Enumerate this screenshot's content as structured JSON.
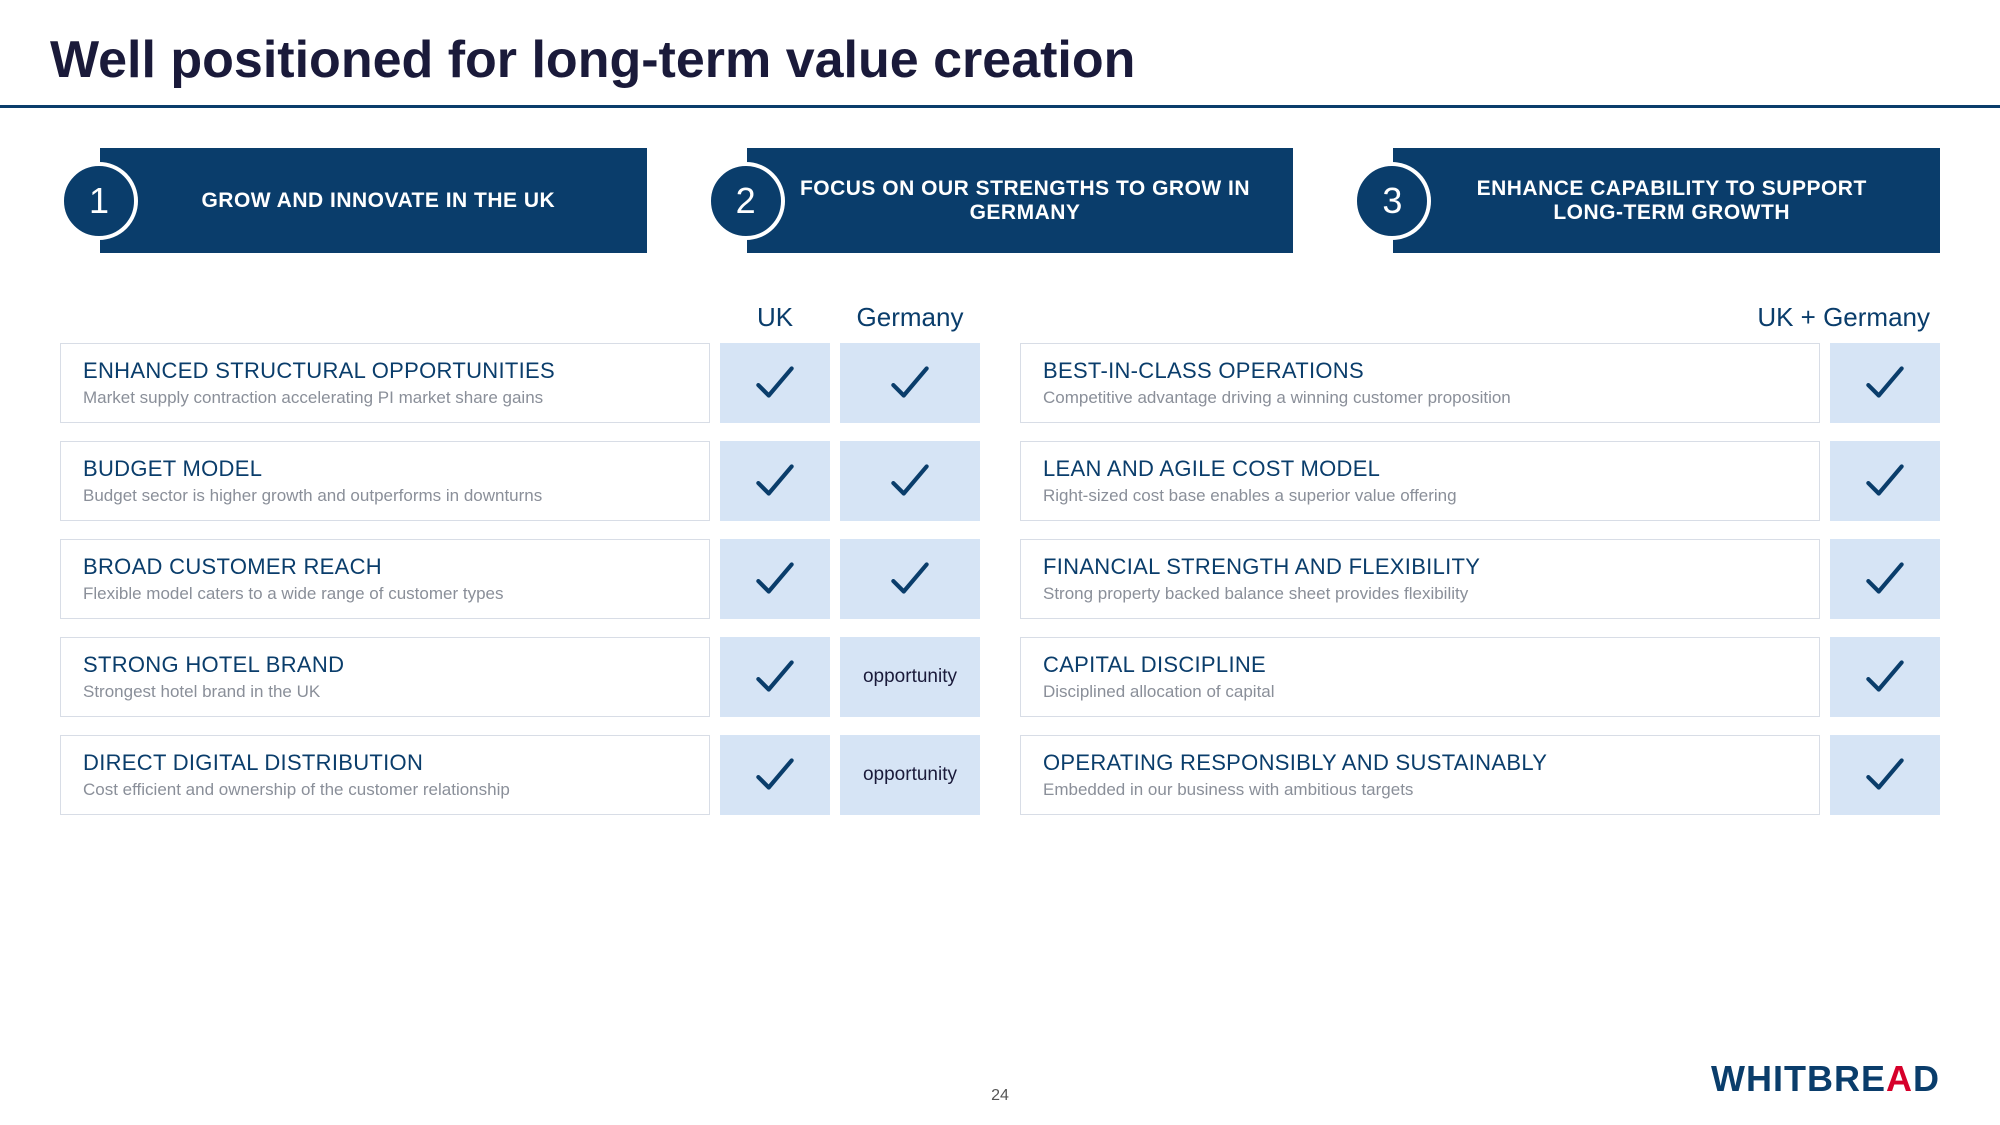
{
  "title": "Well positioned for long-term value creation",
  "colors": {
    "primary": "#0a3d6b",
    "check_bg": "#d6e4f5",
    "card_border": "#d8dde6",
    "subtext": "#8a8f99",
    "brand_accent": "#d6002a"
  },
  "pillars": [
    {
      "num": "1",
      "label": "GROW AND INNOVATE IN THE UK"
    },
    {
      "num": "2",
      "label": "FOCUS ON OUR STRENGTHS TO GROW IN GERMANY"
    },
    {
      "num": "3",
      "label": "ENHANCE CAPABILITY TO SUPPORT LONG-TERM GROWTH"
    }
  ],
  "columns": {
    "uk": "UK",
    "germany": "Germany",
    "uk_germany": "UK + Germany"
  },
  "opportunity_label": "opportunity",
  "left_rows": [
    {
      "title": "ENHANCED STRUCTURAL OPPORTUNITIES",
      "sub": "Market supply contraction accelerating PI market share gains",
      "uk": "check",
      "de": "check"
    },
    {
      "title": "BUDGET MODEL",
      "sub": "Budget sector is higher growth and outperforms in downturns",
      "uk": "check",
      "de": "check"
    },
    {
      "title": "BROAD CUSTOMER REACH",
      "sub": "Flexible model caters to a wide range of customer types",
      "uk": "check",
      "de": "check"
    },
    {
      "title": "STRONG HOTEL BRAND",
      "sub": "Strongest hotel brand in the UK",
      "uk": "check",
      "de": "opportunity"
    },
    {
      "title": "DIRECT DIGITAL DISTRIBUTION",
      "sub": "Cost efficient and ownership of the customer relationship",
      "uk": "check",
      "de": "opportunity"
    }
  ],
  "right_rows": [
    {
      "title": "BEST-IN-CLASS OPERATIONS",
      "sub": "Competitive advantage driving a winning customer proposition",
      "ukde": "check"
    },
    {
      "title": "LEAN AND AGILE COST MODEL",
      "sub": "Right-sized cost base enables a superior value offering",
      "ukde": "check"
    },
    {
      "title": "FINANCIAL STRENGTH AND FLEXIBILITY",
      "sub": "Strong property backed balance sheet provides flexibility",
      "ukde": "check"
    },
    {
      "title": "CAPITAL DISCIPLINE",
      "sub": "Disciplined allocation of capital",
      "ukde": "check"
    },
    {
      "title": "OPERATING RESPONSIBLY AND SUSTAINABLY",
      "sub": "Embedded in our business with ambitious targets",
      "ukde": "check"
    }
  ],
  "page_number": "24",
  "brand": {
    "pre": "WHITBRE",
    "accent": "A",
    "post": "D"
  }
}
